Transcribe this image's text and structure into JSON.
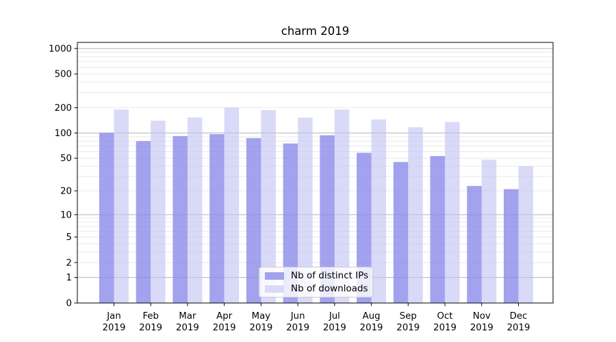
{
  "chart_data": {
    "type": "bar",
    "title": "charm 2019",
    "categories": [
      "Jan",
      "Feb",
      "Mar",
      "Apr",
      "May",
      "Jun",
      "Jul",
      "Aug",
      "Sep",
      "Oct",
      "Nov",
      "Dec"
    ],
    "category_year": "2019",
    "series": [
      {
        "name": "Nb of distinct IPs",
        "color": "#8888ea",
        "opacity": 0.78,
        "values": [
          100,
          80,
          92,
          97,
          87,
          75,
          94,
          58,
          45,
          53,
          23,
          21
        ]
      },
      {
        "name": "Nb of downloads",
        "color": "#c2c2f4",
        "opacity": 0.62,
        "values": [
          190,
          140,
          153,
          200,
          187,
          152,
          190,
          145,
          117,
          135,
          48,
          40
        ]
      }
    ],
    "yscale": "log(x+1)",
    "yticks": [
      0,
      1,
      2,
      5,
      10,
      20,
      50,
      100,
      200,
      500,
      1000
    ],
    "ylim": [
      0,
      1180
    ],
    "grid": true,
    "legend_position": "lower-center",
    "colors": {
      "decade_gridline": "#b2b2b2",
      "minor_gridline": "#e9e9e9",
      "axis": "#000000",
      "background": "#ffffff"
    }
  }
}
